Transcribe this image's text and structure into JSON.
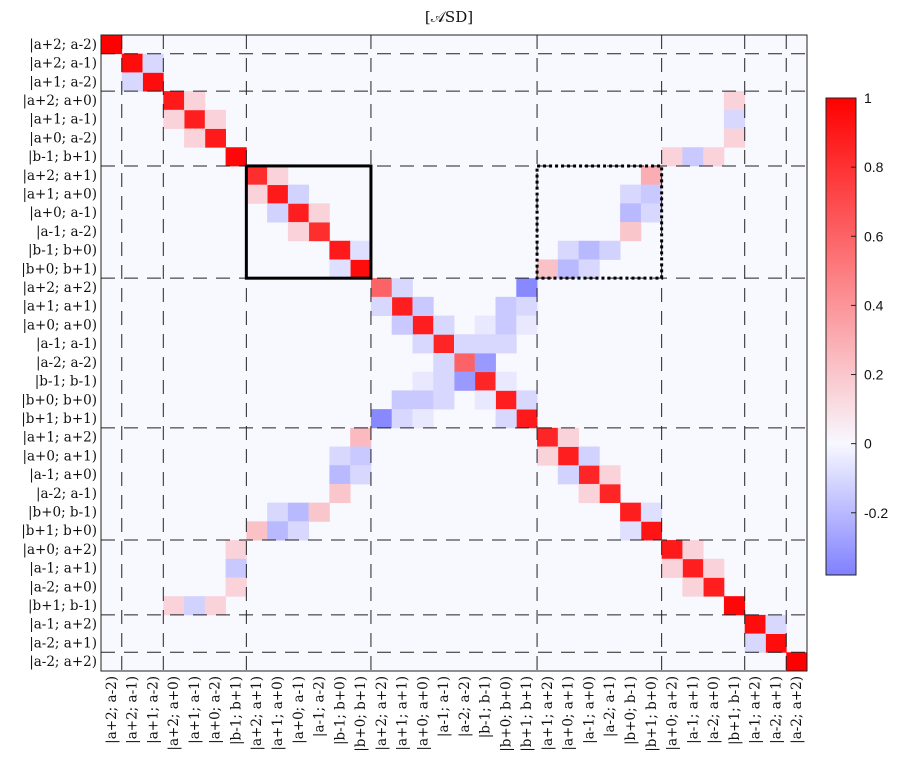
{
  "chart_data": {
    "type": "heatmap",
    "title": "[𝒜SD]",
    "labels": [
      "|a+2; a-2)",
      "|a+2; a-1)",
      "|a+1; a-2)",
      "|a+2; a+0)",
      "|a+1; a-1)",
      "|a+0; a-2)",
      "|b-1; b+1)",
      "|a+2; a+1)",
      "|a+1; a+0)",
      "|a+0; a-1)",
      "|a-1; a-2)",
      "|b-1; b+0)",
      "|b+0; b+1)",
      "|a+2; a+2)",
      "|a+1; a+1)",
      "|a+0; a+0)",
      "|a-1; a-1)",
      "|a-2; a-2)",
      "|b-1; b-1)",
      "|b+0; b+0)",
      "|b+1; b+1)",
      "|a+1; a+2)",
      "|a+0; a+1)",
      "|a-1; a+0)",
      "|a-2; a-1)",
      "|b+0; b-1)",
      "|b+1; b+0)",
      "|a+0; a+2)",
      "|a-1; a+1)",
      "|a-2; a+0)",
      "|b+1; b-1)",
      "|a-1; a+2)",
      "|a-2; a+1)",
      "|a-2; a+2)"
    ],
    "block_boundaries": [
      1,
      3,
      7,
      13,
      21,
      27,
      31,
      33
    ],
    "entries": [
      [
        0,
        0,
        1.0
      ],
      [
        1,
        1,
        0.95
      ],
      [
        2,
        2,
        0.95
      ],
      [
        1,
        2,
        -0.1
      ],
      [
        2,
        1,
        -0.1
      ],
      [
        3,
        3,
        0.9
      ],
      [
        4,
        4,
        0.88
      ],
      [
        5,
        5,
        0.9
      ],
      [
        6,
        6,
        0.97
      ],
      [
        3,
        4,
        0.15
      ],
      [
        4,
        3,
        0.15
      ],
      [
        4,
        5,
        0.15
      ],
      [
        5,
        4,
        0.15
      ],
      [
        3,
        30,
        0.15
      ],
      [
        4,
        30,
        -0.1
      ],
      [
        5,
        30,
        0.15
      ],
      [
        6,
        27,
        0.15
      ],
      [
        6,
        28,
        -0.15
      ],
      [
        6,
        29,
        0.15
      ],
      [
        7,
        7,
        0.82
      ],
      [
        8,
        8,
        0.9
      ],
      [
        9,
        9,
        0.88
      ],
      [
        10,
        10,
        0.82
      ],
      [
        11,
        11,
        0.9
      ],
      [
        12,
        12,
        0.95
      ],
      [
        7,
        8,
        0.15
      ],
      [
        8,
        7,
        0.15
      ],
      [
        8,
        9,
        -0.12
      ],
      [
        9,
        8,
        -0.12
      ],
      [
        9,
        10,
        0.15
      ],
      [
        10,
        9,
        0.15
      ],
      [
        11,
        12,
        -0.08
      ],
      [
        12,
        11,
        -0.08
      ],
      [
        7,
        26,
        0.3
      ],
      [
        8,
        25,
        -0.1
      ],
      [
        8,
        26,
        -0.15
      ],
      [
        9,
        25,
        -0.2
      ],
      [
        9,
        26,
        -0.1
      ],
      [
        10,
        25,
        0.2
      ],
      [
        11,
        22,
        -0.1
      ],
      [
        11,
        23,
        -0.2
      ],
      [
        11,
        24,
        -0.12
      ],
      [
        12,
        21,
        0.22
      ],
      [
        12,
        22,
        -0.2
      ],
      [
        12,
        23,
        -0.1
      ],
      [
        13,
        13,
        0.6
      ],
      [
        14,
        14,
        0.88
      ],
      [
        15,
        15,
        0.88
      ],
      [
        16,
        16,
        0.85
      ],
      [
        17,
        17,
        0.6
      ],
      [
        18,
        18,
        0.85
      ],
      [
        19,
        19,
        0.88
      ],
      [
        20,
        20,
        0.9
      ],
      [
        13,
        14,
        -0.1
      ],
      [
        14,
        13,
        -0.1
      ],
      [
        14,
        15,
        -0.15
      ],
      [
        15,
        14,
        -0.15
      ],
      [
        15,
        16,
        -0.1
      ],
      [
        16,
        15,
        -0.1
      ],
      [
        17,
        18,
        -0.3
      ],
      [
        18,
        17,
        -0.3
      ],
      [
        18,
        19,
        -0.05
      ],
      [
        19,
        18,
        -0.05
      ],
      [
        19,
        20,
        -0.1
      ],
      [
        20,
        19,
        -0.1
      ],
      [
        13,
        20,
        -0.35
      ],
      [
        20,
        13,
        -0.35
      ],
      [
        14,
        19,
        -0.15
      ],
      [
        19,
        14,
        -0.15
      ],
      [
        15,
        18,
        -0.05
      ],
      [
        18,
        15,
        -0.05
      ],
      [
        15,
        19,
        -0.15
      ],
      [
        19,
        15,
        -0.15
      ],
      [
        16,
        19,
        -0.1
      ],
      [
        19,
        16,
        -0.1
      ],
      [
        14,
        20,
        -0.1
      ],
      [
        20,
        14,
        -0.1
      ],
      [
        15,
        20,
        -0.05
      ],
      [
        20,
        15,
        -0.05
      ],
      [
        16,
        18,
        -0.1
      ],
      [
        18,
        16,
        -0.1
      ],
      [
        16,
        17,
        -0.1
      ],
      [
        17,
        16,
        -0.1
      ],
      [
        21,
        21,
        0.85
      ],
      [
        22,
        22,
        0.88
      ],
      [
        23,
        23,
        0.85
      ],
      [
        24,
        24,
        0.85
      ],
      [
        25,
        25,
        0.88
      ],
      [
        26,
        26,
        0.92
      ],
      [
        21,
        22,
        0.15
      ],
      [
        22,
        21,
        0.15
      ],
      [
        22,
        23,
        -0.12
      ],
      [
        23,
        22,
        -0.12
      ],
      [
        23,
        24,
        0.15
      ],
      [
        24,
        23,
        0.15
      ],
      [
        25,
        26,
        -0.08
      ],
      [
        26,
        25,
        -0.08
      ],
      [
        21,
        12,
        0.25
      ],
      [
        22,
        11,
        -0.1
      ],
      [
        22,
        12,
        -0.15
      ],
      [
        23,
        11,
        -0.2
      ],
      [
        23,
        12,
        -0.1
      ],
      [
        24,
        11,
        0.2
      ],
      [
        25,
        8,
        -0.1
      ],
      [
        25,
        9,
        -0.2
      ],
      [
        25,
        10,
        0.2
      ],
      [
        26,
        7,
        0.22
      ],
      [
        26,
        8,
        -0.2
      ],
      [
        26,
        9,
        -0.1
      ],
      [
        27,
        27,
        0.9
      ],
      [
        28,
        28,
        0.88
      ],
      [
        29,
        29,
        0.88
      ],
      [
        30,
        30,
        0.97
      ],
      [
        27,
        28,
        0.15
      ],
      [
        28,
        27,
        0.15
      ],
      [
        28,
        29,
        0.15
      ],
      [
        29,
        28,
        0.15
      ],
      [
        27,
        6,
        0.15
      ],
      [
        28,
        6,
        -0.15
      ],
      [
        29,
        6,
        0.15
      ],
      [
        30,
        3,
        0.15
      ],
      [
        30,
        4,
        -0.12
      ],
      [
        30,
        5,
        0.15
      ],
      [
        31,
        31,
        0.95
      ],
      [
        32,
        32,
        0.95
      ],
      [
        31,
        32,
        -0.1
      ],
      [
        32,
        31,
        -0.1
      ],
      [
        33,
        33,
        1.0
      ]
    ],
    "highlights": [
      {
        "rows": [
          7,
          12
        ],
        "cols": [
          7,
          12
        ],
        "style": "solid"
      },
      {
        "rows": [
          7,
          12
        ],
        "cols": [
          21,
          26
        ],
        "style": "dotted"
      }
    ],
    "colorbar": {
      "min": -0.38,
      "max": 1.0,
      "ticks": [
        1,
        0.8,
        0.6,
        0.4,
        0.2,
        0,
        -0.2
      ],
      "tick_labels": [
        "1",
        "0.8",
        "0.6",
        "0.4",
        "0.2",
        "0",
        "-0.2"
      ],
      "colors": {
        "negative": "#8080ff",
        "zero": "#f8f8ff",
        "positive": "#ff0000"
      }
    },
    "legend_position": "right"
  }
}
